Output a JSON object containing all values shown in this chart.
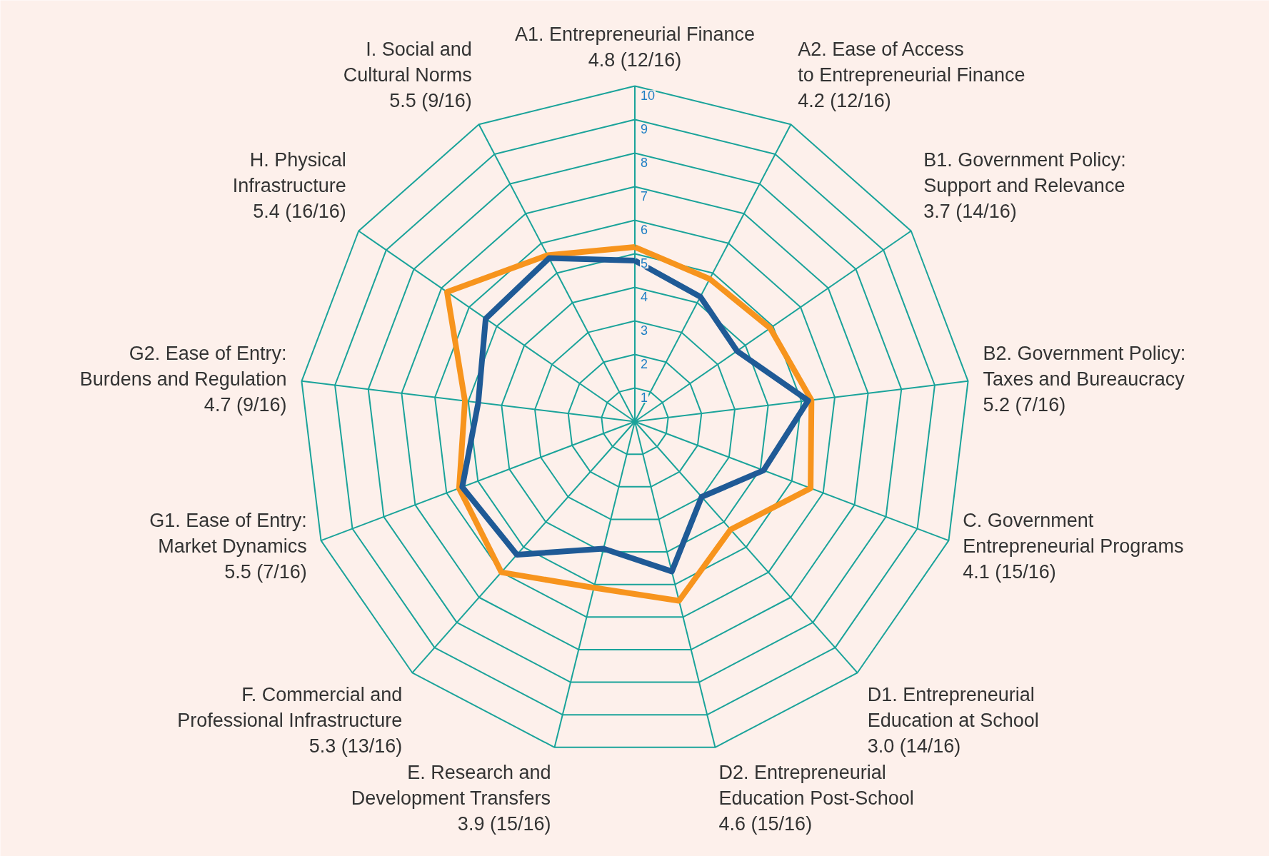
{
  "chart_data": {
    "type": "radar",
    "categories": [
      "A1. Entrepreneurial Finance\n4.8 (12/16)",
      "A2. Ease of Access\nto Entrepreneurial Finance\n4.2 (12/16)",
      "B1. Government Policy:\nSupport and Relevance\n3.7 (14/16)",
      "B2. Government Policy:\nTaxes and Bureaucracy\n5.2 (7/16)",
      "C. Government\nEntrepreneurial Programs\n4.1 (15/16)",
      "D1. Entrepreneurial\nEducation at School\n3.0 (14/16)",
      "D2. Entrepreneurial\nEducation Post-School\n4.6 (15/16)",
      "E. Research and\nDevelopment Transfers\n3.9 (15/16)",
      "F. Commercial and\nProfessional Infrastructure\n5.3 (13/16)",
      "G1. Ease of Entry:\nMarket Dynamics\n5.5 (7/16)",
      "G2. Ease of Entry:\nBurdens and Regulation\n4.7 (9/16)",
      "H. Physical\nInfrastructure\n5.4 (16/16)",
      "I. Social and\nCultural Norms\n5.5 (9/16)"
    ],
    "series": [
      {
        "color": "#f7941d",
        "values": [
          5.2,
          4.8,
          4.9,
          5.3,
          5.6,
          4.3,
          5.5,
          5.1,
          6.0,
          5.6,
          5.1,
          6.8,
          5.6
        ]
      },
      {
        "color": "#1f5a96",
        "values": [
          4.8,
          4.2,
          3.7,
          5.2,
          4.1,
          3.0,
          4.6,
          3.9,
          5.3,
          5.5,
          4.7,
          5.4,
          5.5
        ]
      }
    ],
    "ylim": [
      0,
      10
    ],
    "yticks": [
      1,
      2,
      3,
      4,
      5,
      6,
      7,
      8,
      9,
      10
    ],
    "grid": true,
    "line_style": "solid"
  }
}
